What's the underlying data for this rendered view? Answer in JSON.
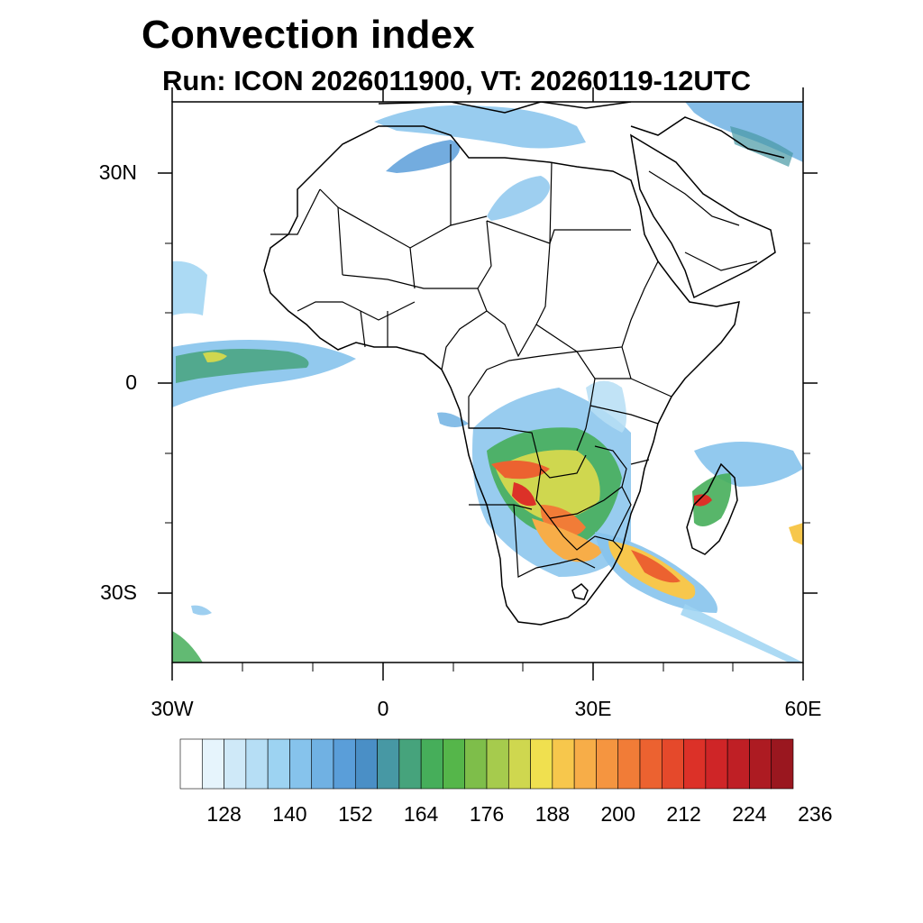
{
  "title": "Convection index",
  "subtitle": "Run: ICON 2026011900,  VT: 20260119-12UTC",
  "axes": {
    "lat_labels": [
      "30N",
      "0",
      "30S"
    ],
    "lon_labels": [
      "30W",
      "0",
      "30E",
      "60E"
    ],
    "lon_range": [
      -30,
      60
    ],
    "lat_range": [
      -40,
      40
    ]
  },
  "colorbar": {
    "labels": [
      "128",
      "140",
      "152",
      "164",
      "176",
      "188",
      "200",
      "212",
      "224",
      "236"
    ],
    "colors": [
      "#ffffff",
      "#e6f4fc",
      "#cfe9f8",
      "#b6def5",
      "#9dd3f2",
      "#86c3ec",
      "#70b1e3",
      "#5a9ed9",
      "#4a8fc6",
      "#4798a4",
      "#46a37c",
      "#46ae5a",
      "#55b64a",
      "#7ebe4a",
      "#a6cb4d",
      "#cfd74f",
      "#f0e04f",
      "#f7c74c",
      "#f7ad48",
      "#f59540",
      "#f17c37",
      "#ec6230",
      "#e5492b",
      "#dc3128",
      "#cf2527",
      "#bf1f25",
      "#ad1b22",
      "#9a171f"
    ]
  }
}
